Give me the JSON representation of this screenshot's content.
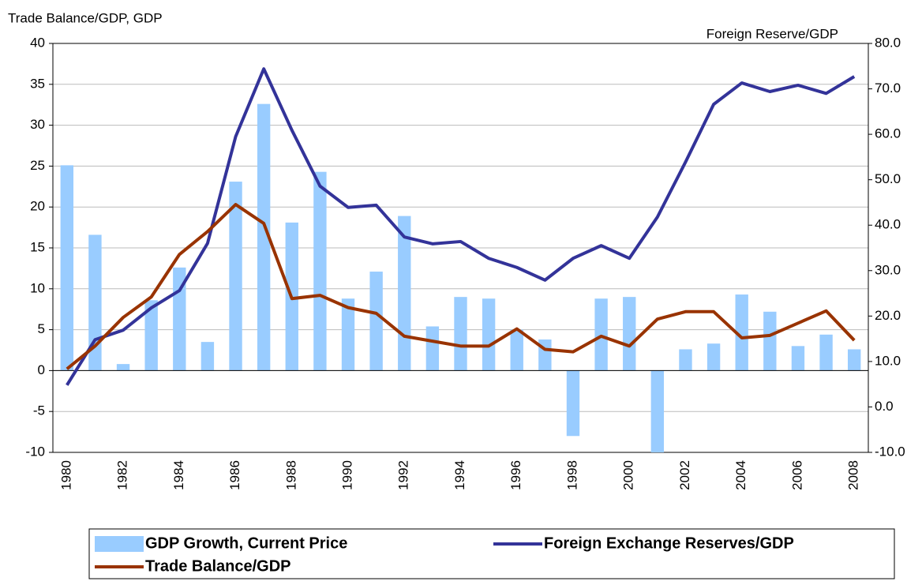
{
  "chart_data": {
    "type": "bar-line",
    "y_label": "Trade Balance/GDP, GDP",
    "y2_label": "Foreign Reserve/GDP",
    "categories": [
      "1980",
      null,
      "1982",
      null,
      "1984",
      null,
      "1986",
      null,
      "1988",
      null,
      "1990",
      null,
      "1992",
      null,
      "1994",
      null,
      "1996",
      null,
      "1998",
      null,
      "2000",
      null,
      "2002",
      null,
      "2004",
      null,
      "2006",
      null,
      "2008"
    ],
    "series": [
      {
        "name": "GDP Growth, Current Price",
        "type": "bar",
        "color": "#99ccff",
        "values": [
          25.1,
          16.6,
          0.8,
          8.6,
          12.6,
          3.5,
          23.1,
          32.6,
          18.1,
          24.3,
          8.8,
          12.1,
          18.9,
          5.4,
          9.0,
          8.8,
          5.0,
          3.8,
          -8.0,
          8.8,
          9.0,
          -10.0,
          2.6,
          3.3,
          9.3,
          7.2,
          3.0,
          4.4,
          2.6
        ]
      },
      {
        "name": "Foreign Exchange Reserves/GDP",
        "type": "line",
        "axis": "y2",
        "color": "#333399",
        "values": [
          4.8,
          14.8,
          16.9,
          21.8,
          25.6,
          36.0,
          59.5,
          74.4,
          60.9,
          48.6,
          43.9,
          44.4,
          37.4,
          35.9,
          36.4,
          32.7,
          30.7,
          27.9,
          32.7,
          35.5,
          32.7,
          41.8,
          53.9,
          66.6,
          71.3,
          69.4,
          70.8,
          69.0,
          72.7
        ]
      },
      {
        "name": "Trade Balance/GDP",
        "type": "line",
        "color": "#993300",
        "values": [
          0.2,
          3.0,
          6.5,
          9.0,
          14.2,
          17.0,
          20.3,
          18.0,
          8.8,
          9.2,
          7.7,
          7.0,
          4.2,
          3.6,
          3.0,
          3.0,
          5.1,
          2.6,
          2.3,
          4.2,
          3.0,
          6.3,
          7.2,
          7.2,
          4.0,
          4.3,
          5.8,
          7.3,
          3.7
        ]
      }
    ],
    "ylim": [
      -10,
      40
    ],
    "yticks": [
      -10,
      -5,
      0,
      5,
      10,
      15,
      20,
      25,
      30,
      35,
      40
    ],
    "y2lim": [
      -10,
      80
    ],
    "y2ticks": [
      {
        "value": -10,
        "label": "-10.0"
      },
      {
        "value": 0,
        "label": "0.0"
      },
      {
        "value": 10,
        "label": "10.0"
      },
      {
        "value": 20,
        "label": "20.0"
      },
      {
        "value": 30,
        "label": "30.0"
      },
      {
        "value": 40,
        "label": "40.0"
      },
      {
        "value": 50,
        "label": "50.0"
      },
      {
        "value": 60,
        "label": "60.0"
      },
      {
        "value": 70,
        "label": "70.0"
      },
      {
        "value": 80,
        "label": "80.0"
      }
    ],
    "grid": true
  }
}
